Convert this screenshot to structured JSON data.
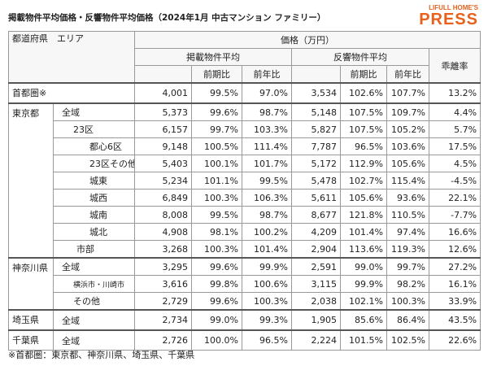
{
  "header": {
    "title": "掲載物件平均価格・反響物件平均価格（2024年1月 中古マンション ファミリー）",
    "logo_top": "LIFULL HOME'S",
    "logo_main": "PRESS"
  },
  "table": {
    "corner": "都道府県　エリア",
    "price_header": "価格（万円）",
    "listed": "掲載物件平均",
    "response": "反響物件平均",
    "gap": "乖離率",
    "qoq": "前期比",
    "yoy": "前年比",
    "groups": [
      {
        "region": "首都圏※",
        "rows": [
          {
            "cells": [
              "4,001",
              "99.5%",
              "97.0%",
              "3,534",
              "102.6%",
              "107.7%",
              "13.2%"
            ]
          }
        ]
      },
      {
        "region": "東京都",
        "rows": [
          {
            "area": "全域",
            "cells": [
              "5,373",
              "99.6%",
              "98.7%",
              "5,148",
              "107.5%",
              "109.7%",
              "4.4%"
            ]
          },
          {
            "area": "23区",
            "cells": [
              "6,157",
              "99.7%",
              "103.3%",
              "5,827",
              "107.5%",
              "105.2%",
              "5.7%"
            ]
          },
          {
            "area": "都心6区",
            "cells": [
              "9,148",
              "100.5%",
              "111.4%",
              "7,787",
              "96.5%",
              "103.6%",
              "17.5%"
            ]
          },
          {
            "area": "23区その他",
            "cells": [
              "5,403",
              "100.1%",
              "101.7%",
              "5,172",
              "112.9%",
              "105.6%",
              "4.5%"
            ]
          },
          {
            "area": "城東",
            "cells": [
              "5,234",
              "101.1%",
              "99.5%",
              "5,478",
              "102.7%",
              "115.4%",
              "-4.5%"
            ]
          },
          {
            "area": "城西",
            "cells": [
              "6,849",
              "100.3%",
              "106.3%",
              "5,611",
              "105.6%",
              "93.6%",
              "22.1%"
            ]
          },
          {
            "area": "城南",
            "cells": [
              "8,008",
              "99.5%",
              "98.7%",
              "8,677",
              "121.8%",
              "110.5%",
              "-7.7%"
            ]
          },
          {
            "area": "城北",
            "cells": [
              "4,908",
              "98.1%",
              "100.2%",
              "4,209",
              "101.4%",
              "97.4%",
              "16.6%"
            ]
          },
          {
            "area": "市部",
            "cells": [
              "3,268",
              "100.3%",
              "101.4%",
              "2,904",
              "113.6%",
              "119.3%",
              "12.6%"
            ]
          }
        ]
      },
      {
        "region": "神奈川県",
        "rows": [
          {
            "area": "全域",
            "cells": [
              "3,295",
              "99.6%",
              "99.9%",
              "2,591",
              "99.0%",
              "99.7%",
              "27.2%"
            ]
          },
          {
            "area": "横浜市・川崎市",
            "cells": [
              "3,616",
              "99.8%",
              "100.6%",
              "3,115",
              "99.9%",
              "98.2%",
              "16.1%"
            ]
          },
          {
            "area": "その他",
            "cells": [
              "2,729",
              "99.6%",
              "100.3%",
              "2,038",
              "102.1%",
              "100.3%",
              "33.9%"
            ]
          }
        ]
      },
      {
        "region": "埼玉県",
        "rows": [
          {
            "area": "全域",
            "cells": [
              "2,734",
              "99.0%",
              "99.3%",
              "1,905",
              "85.6%",
              "86.4%",
              "43.5%"
            ]
          }
        ]
      },
      {
        "region": "千葉県",
        "rows": [
          {
            "area": "全域",
            "cells": [
              "2,726",
              "100.0%",
              "96.5%",
              "2,224",
              "101.5%",
              "102.5%",
              "22.6%"
            ]
          }
        ]
      }
    ]
  },
  "footer": {
    "note": "※首都圏：東京都、神奈川県、埼玉県、千葉県"
  }
}
